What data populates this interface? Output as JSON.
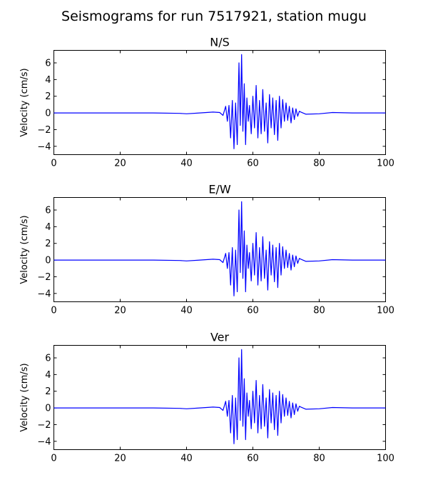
{
  "figure": {
    "suptitle": "Seismograms for run 7517921, station mugu"
  },
  "chart_data": [
    {
      "type": "line",
      "title": "N/S",
      "xlabel": "",
      "ylabel": "Velocity (cm/s)",
      "xlim": [
        0,
        100
      ],
      "ylim": [
        -5,
        7.5
      ],
      "xticks": [
        0,
        20,
        40,
        60,
        80,
        100
      ],
      "yticks": [
        -4,
        -2,
        0,
        2,
        4,
        6
      ],
      "grid": false,
      "line_color": "#0000ff",
      "series": [
        {
          "x": [
            0,
            10,
            20,
            30,
            38,
            40,
            44,
            48,
            50,
            51,
            51.8,
            52.3,
            52.8,
            53.3,
            53.8,
            54.3,
            54.8,
            55.3,
            55.8,
            56.2,
            56.6,
            57,
            57.4,
            57.8,
            58.2,
            58.6,
            59,
            59.5,
            60,
            60.5,
            61,
            61.5,
            62,
            62.5,
            63,
            63.5,
            64,
            64.5,
            65,
            65.5,
            66,
            66.5,
            67,
            67.5,
            68,
            68.5,
            69,
            69.5,
            70,
            70.5,
            71,
            71.5,
            72,
            72.5,
            73,
            73.5,
            74,
            74.5,
            76,
            80,
            84,
            90,
            95,
            100
          ],
          "y": [
            0,
            0,
            0,
            0,
            -0.05,
            -0.1,
            0,
            0.1,
            0.05,
            -0.3,
            0.8,
            -1.0,
            0.9,
            -3.0,
            1.5,
            -4.3,
            1.2,
            -3.8,
            6.0,
            -1.5,
            7.0,
            -2.2,
            3.5,
            -3.8,
            1.8,
            -1.0,
            0.9,
            -2.5,
            2.0,
            -1.8,
            3.3,
            -3.0,
            1.5,
            -2.5,
            2.8,
            -2.2,
            1.2,
            -3.6,
            2.2,
            -1.8,
            1.8,
            -2.6,
            1.5,
            -3.3,
            2.0,
            -1.8,
            1.6,
            -1.0,
            1.2,
            -0.9,
            0.8,
            -1.2,
            0.6,
            -0.8,
            0.5,
            -0.4,
            0.2,
            0.1,
            -0.15,
            -0.1,
            0.05,
            0,
            0,
            0
          ]
        }
      ]
    },
    {
      "type": "line",
      "title": "E/W",
      "xlabel": "",
      "ylabel": "Velocity (cm/s)",
      "xlim": [
        0,
        100
      ],
      "ylim": [
        -5,
        7.5
      ],
      "xticks": [
        0,
        20,
        40,
        60,
        80,
        100
      ],
      "yticks": [
        -4,
        -2,
        0,
        2,
        4,
        6
      ],
      "grid": false,
      "line_color": "#0000ff",
      "series": [
        {
          "x": [
            0,
            10,
            20,
            30,
            38,
            40,
            44,
            48,
            50,
            51,
            51.8,
            52.3,
            52.8,
            53.3,
            53.8,
            54.3,
            54.8,
            55.3,
            55.8,
            56.2,
            56.6,
            57,
            57.4,
            57.8,
            58.2,
            58.6,
            59,
            59.5,
            60,
            60.5,
            61,
            61.5,
            62,
            62.5,
            63,
            63.5,
            64,
            64.5,
            65,
            65.5,
            66,
            66.5,
            67,
            67.5,
            68,
            68.5,
            69,
            69.5,
            70,
            70.5,
            71,
            71.5,
            72,
            72.5,
            73,
            73.5,
            74,
            74.5,
            76,
            80,
            84,
            90,
            95,
            100
          ],
          "y": [
            0,
            0,
            0,
            0,
            -0.05,
            -0.1,
            0,
            0.1,
            0.05,
            -0.3,
            0.8,
            -1.0,
            0.9,
            -3.0,
            1.5,
            -4.3,
            1.2,
            -3.8,
            6.0,
            -1.5,
            7.0,
            -2.2,
            3.5,
            -3.8,
            1.8,
            -1.0,
            0.9,
            -2.5,
            2.0,
            -1.8,
            3.3,
            -3.0,
            1.5,
            -2.5,
            2.8,
            -2.2,
            1.2,
            -3.6,
            2.2,
            -1.8,
            1.8,
            -2.6,
            1.5,
            -3.3,
            2.0,
            -1.8,
            1.6,
            -1.0,
            1.2,
            -0.9,
            0.8,
            -1.2,
            0.6,
            -0.8,
            0.5,
            -0.4,
            0.2,
            0.1,
            -0.15,
            -0.1,
            0.05,
            0,
            0,
            0
          ]
        }
      ]
    },
    {
      "type": "line",
      "title": "Ver",
      "xlabel": "",
      "ylabel": "Velocity (cm/s)",
      "xlim": [
        0,
        100
      ],
      "ylim": [
        -5,
        7.5
      ],
      "xticks": [
        0,
        20,
        40,
        60,
        80,
        100
      ],
      "yticks": [
        -4,
        -2,
        0,
        2,
        4,
        6
      ],
      "grid": false,
      "line_color": "#0000ff",
      "series": [
        {
          "x": [
            0,
            10,
            20,
            30,
            38,
            40,
            44,
            48,
            50,
            51,
            51.8,
            52.3,
            52.8,
            53.3,
            53.8,
            54.3,
            54.8,
            55.3,
            55.8,
            56.2,
            56.6,
            57,
            57.4,
            57.8,
            58.2,
            58.6,
            59,
            59.5,
            60,
            60.5,
            61,
            61.5,
            62,
            62.5,
            63,
            63.5,
            64,
            64.5,
            65,
            65.5,
            66,
            66.5,
            67,
            67.5,
            68,
            68.5,
            69,
            69.5,
            70,
            70.5,
            71,
            71.5,
            72,
            72.5,
            73,
            73.5,
            74,
            74.5,
            76,
            80,
            84,
            90,
            95,
            100
          ],
          "y": [
            0,
            0,
            0,
            0,
            -0.05,
            -0.1,
            0,
            0.1,
            0.05,
            -0.3,
            0.8,
            -1.0,
            0.9,
            -3.0,
            1.5,
            -4.3,
            1.2,
            -3.8,
            6.0,
            -1.5,
            7.0,
            -2.2,
            3.5,
            -3.8,
            1.8,
            -1.0,
            0.9,
            -2.5,
            2.0,
            -1.8,
            3.3,
            -3.0,
            1.5,
            -2.5,
            2.8,
            -2.2,
            1.2,
            -3.6,
            2.2,
            -1.8,
            1.8,
            -2.6,
            1.5,
            -3.3,
            2.0,
            -1.8,
            1.6,
            -1.0,
            1.2,
            -0.9,
            0.8,
            -1.2,
            0.6,
            -0.8,
            0.5,
            -0.4,
            0.2,
            0.1,
            -0.15,
            -0.1,
            0.05,
            0,
            0,
            0
          ]
        }
      ]
    }
  ]
}
